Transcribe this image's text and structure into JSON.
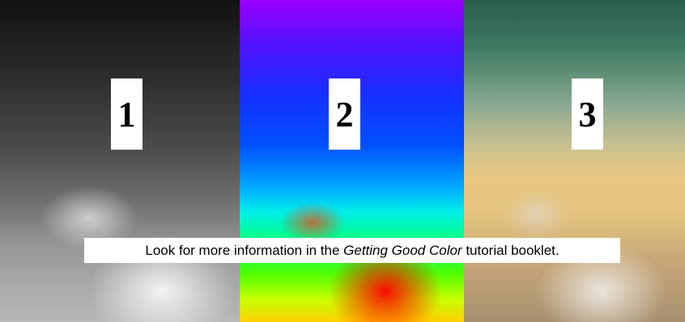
{
  "panels": [
    {
      "label": "1"
    },
    {
      "label": "2"
    },
    {
      "label": "3"
    }
  ],
  "caption": {
    "before": "Look for more information in the ",
    "italic": "Getting Good Color",
    "after": " tutorial booklet."
  }
}
